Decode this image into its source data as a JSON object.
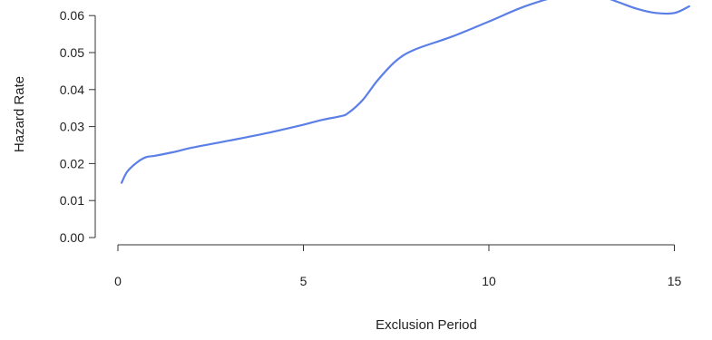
{
  "chart_data": {
    "type": "line",
    "title": "",
    "xlabel": "Exclusion Period",
    "ylabel": "Hazard Rate",
    "xlim": [
      0,
      15.4
    ],
    "ylim": [
      0,
      0.065
    ],
    "xticks": [
      0,
      5,
      10,
      15
    ],
    "xtick_labels": [
      "0",
      "5",
      "10",
      "15"
    ],
    "yticks": [
      0.0,
      0.01,
      0.02,
      0.03,
      0.04,
      0.05,
      0.06
    ],
    "ytick_labels": [
      "0.00",
      "0.01",
      "0.02",
      "0.03",
      "0.04",
      "0.05",
      "0.06"
    ],
    "grid": false,
    "legend": "none",
    "series": [
      {
        "color": "#5b7fe6",
        "x": [
          0.1,
          0.25,
          0.5,
          0.75,
          1.0,
          1.5,
          2.0,
          3.0,
          4.0,
          5.0,
          5.5,
          6.0,
          6.2,
          6.6,
          7.0,
          7.5,
          8.0,
          9.0,
          10.0,
          11.0,
          12.0,
          12.7,
          13.0,
          13.5,
          14.0,
          14.5,
          15.0,
          15.4
        ],
        "y": [
          0.0148,
          0.0178,
          0.0202,
          0.0217,
          0.0221,
          0.0231,
          0.0243,
          0.0262,
          0.0282,
          0.0305,
          0.0318,
          0.0328,
          0.0336,
          0.0372,
          0.0425,
          0.0478,
          0.0508,
          0.0543,
          0.0584,
          0.0626,
          0.0655,
          0.0659,
          0.0654,
          0.0636,
          0.0618,
          0.0607,
          0.0607,
          0.0625
        ]
      }
    ]
  }
}
